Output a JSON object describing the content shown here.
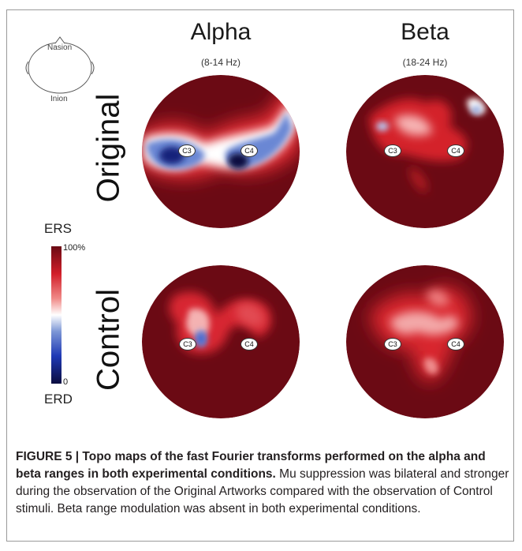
{
  "head_diagram": {
    "nasion": "Nasion",
    "inion": "Inion"
  },
  "columns": [
    {
      "title": "Alpha",
      "range": "(8-14 Hz)"
    },
    {
      "title": "Beta",
      "range": "(18-24 Hz)"
    }
  ],
  "rows": [
    "Original",
    "Control"
  ],
  "electrodes": {
    "left": "C3",
    "right": "C4"
  },
  "color_scale": {
    "top_label": "ERS",
    "bottom_label": "ERD",
    "max_tick": "100%",
    "min_tick": "0",
    "colors": [
      "#6b0a14",
      "#d21f2a",
      "#f08a88",
      "#ffffff",
      "#7d97d6",
      "#1f39b5",
      "#0b0d40"
    ]
  },
  "caption": {
    "bold": "FIGURE 5 | Topo maps of the fast Fourier transforms performed on the alpha and beta ranges in both experimental conditions.",
    "body": " Mu suppression was bilateral and stronger during the observation of the Original Artworks compared with the observation of Control stimuli. Beta range modulation was absent in both experimental conditions."
  }
}
